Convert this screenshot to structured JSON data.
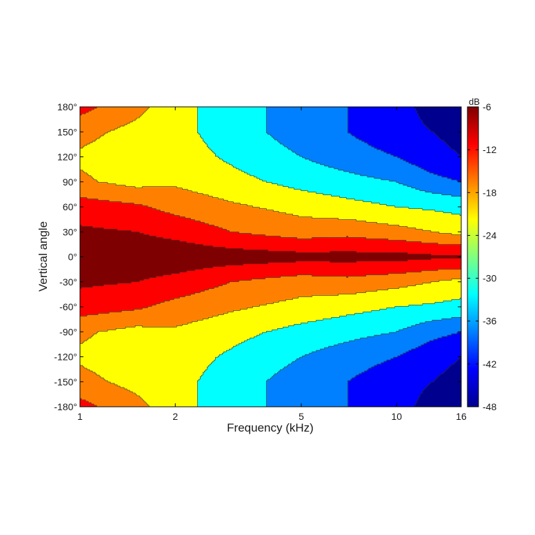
{
  "chart_data": {
    "type": "heatmap",
    "xlabel": "Frequency (kHz)",
    "ylabel": "Vertical angle",
    "colorbar_label": "dB",
    "x_scale": "log",
    "xlim": [
      1,
      16
    ],
    "ylim": [
      -180,
      180
    ],
    "clim": [
      -48,
      -6
    ],
    "x_ticks": [
      1,
      2,
      5,
      10,
      16
    ],
    "x_tick_labels": [
      "1",
      "2",
      "5",
      "10",
      "16"
    ],
    "y_ticks": [
      180,
      150,
      120,
      90,
      60,
      30,
      0,
      -30,
      -60,
      -90,
      -120,
      -150,
      -180
    ],
    "y_tick_labels": [
      "180°",
      "150°",
      "120°",
      "90°",
      "60°",
      "30°",
      "0°",
      "-30°",
      "-60°",
      "-90°",
      "-120°",
      "-150°",
      "-180°"
    ],
    "colorbar_ticks": [
      -6,
      -12,
      -18,
      -24,
      -30,
      -36,
      -42,
      -48
    ],
    "colorbar_tick_labels": [
      "-6",
      "-12",
      "-18",
      "-24",
      "-30",
      "-36",
      "-42",
      "-48"
    ],
    "colormap": [
      "#7f0000",
      "#ff0000",
      "#ff8000",
      "#ffff00",
      "#80ff80",
      "#00ffff",
      "#0080ff",
      "#0000ff",
      "#00008f"
    ],
    "contour_levels": [
      -42,
      -36,
      -30,
      -24,
      -18,
      -12,
      -6
    ],
    "frequencies_khz": [
      1,
      1.5,
      2,
      3,
      5,
      7,
      10,
      13,
      16
    ],
    "angles_deg": [
      -180,
      -150,
      -120,
      -90,
      -60,
      -30,
      0,
      30,
      60,
      90,
      120,
      150,
      180
    ],
    "values_db": [
      [
        -10,
        -16,
        -22,
        -27,
        -33,
        -36,
        -40,
        -44,
        -45
      ],
      [
        -16,
        -20,
        -22,
        -27,
        -33,
        -36,
        -40,
        -42,
        -44
      ],
      [
        -19,
        -22,
        -21,
        -25,
        -30,
        -33,
        -36,
        -40,
        -42
      ],
      [
        -17,
        -20,
        -19,
        -22,
        -26,
        -28,
        -30,
        -34,
        -36
      ],
      [
        -9,
        -11,
        -14,
        -17,
        -20,
        -22,
        -24,
        -25,
        -26
      ],
      [
        -5,
        -6,
        -8,
        -12,
        -15,
        -14,
        -16,
        -18,
        -20
      ],
      [
        -2,
        -2,
        -2,
        -3,
        -4,
        -4,
        -4,
        -5,
        -5
      ],
      [
        -5,
        -6,
        -8,
        -12,
        -15,
        -14,
        -16,
        -18,
        -20
      ],
      [
        -9,
        -11,
        -14,
        -17,
        -20,
        -22,
        -24,
        -25,
        -26
      ],
      [
        -17,
        -20,
        -19,
        -22,
        -26,
        -28,
        -30,
        -34,
        -36
      ],
      [
        -19,
        -22,
        -21,
        -25,
        -30,
        -33,
        -36,
        -40,
        -42
      ],
      [
        -16,
        -20,
        -22,
        -27,
        -33,
        -36,
        -40,
        -42,
        -44
      ],
      [
        -10,
        -16,
        -22,
        -27,
        -33,
        -36,
        -40,
        -44,
        -45
      ]
    ]
  }
}
